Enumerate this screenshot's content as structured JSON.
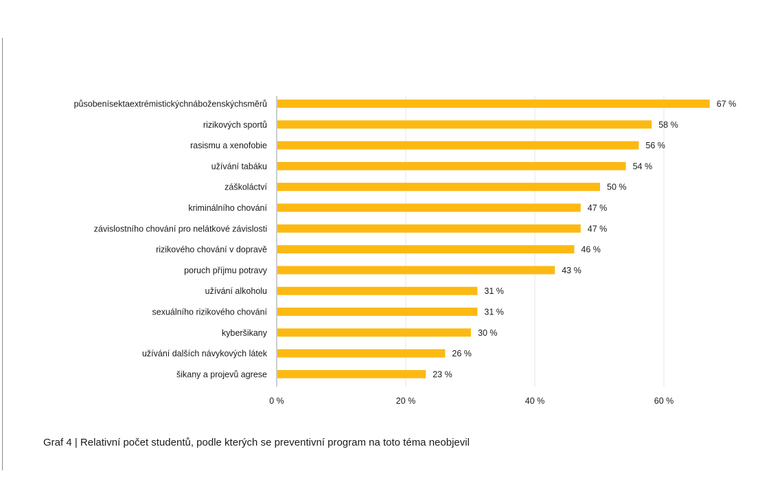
{
  "caption": "Graf 4 | Relativní počet studentů, podle kterých se preventivní program na toto téma neobjevil",
  "colors": {
    "bar": "#FDB913",
    "grid": "#e6e6e6",
    "axis": "#9a9a9a",
    "text": "#1a1a1a"
  },
  "chart_data": {
    "type": "bar",
    "orientation": "horizontal",
    "title": "",
    "xlabel": "",
    "ylabel": "",
    "categories": [
      "působenísektaextrémistickýchnáboženskýchsměrů",
      "rizikových sportů",
      "rasismu a xenofobie",
      "užívání tabáku",
      "záškoláctví",
      "kriminálního chování",
      "závislostního chování pro nelátkové závislosti",
      "rizikového chování v dopravě",
      "poruch příjmu potravy",
      "užívání alkoholu",
      "sexuálního rizikového chování",
      "kyberšikany",
      "užívání dalších návykových látek",
      "šikany a projevů agrese"
    ],
    "values": [
      67,
      58,
      56,
      54,
      50,
      47,
      47,
      46,
      43,
      31,
      31,
      30,
      26,
      23
    ],
    "value_labels": [
      "67 %",
      "58 %",
      "56 %",
      "54 %",
      "50 %",
      "47 %",
      "47 %",
      "46 %",
      "43 %",
      "31 %",
      "31 %",
      "30 %",
      "26 %",
      "23 %"
    ],
    "xlim": [
      0,
      67
    ],
    "x_ticks": [
      0,
      20,
      40,
      60
    ],
    "x_tick_labels": [
      "0 %",
      "20 %",
      "40 %",
      "60 %"
    ],
    "grid": true,
    "legend": "none"
  }
}
